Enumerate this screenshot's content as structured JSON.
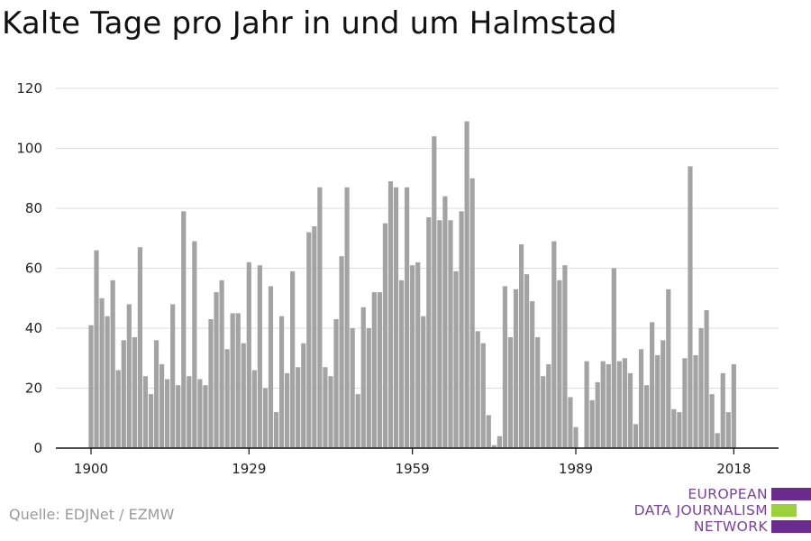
{
  "title": "Kalte Tage pro Jahr in und um Halmstad",
  "source": "Quelle: EDJNet / EZMW",
  "logo": {
    "lines": [
      "EUROPEAN",
      "DATA JOURNALISM",
      "NETWORK"
    ],
    "text_color": "#7b3fa0",
    "bar_colors": [
      "#6a2a8e",
      "#9bd13a",
      "#6a2a8e"
    ]
  },
  "colors": {
    "bar": "#a3a3a3",
    "grid": "#dddddd",
    "axis": "#111111",
    "text": "#222222"
  },
  "chart_data": {
    "type": "bar",
    "title": "Kalte Tage pro Jahr in und um Halmstad",
    "xlabel": "",
    "ylabel": "",
    "ylim": [
      0,
      120
    ],
    "yticks": [
      0,
      20,
      40,
      60,
      80,
      100,
      120
    ],
    "xticks": [
      1900,
      1929,
      1959,
      1989,
      2018
    ],
    "grid": true,
    "x": [
      1900,
      1901,
      1902,
      1903,
      1904,
      1905,
      1906,
      1907,
      1908,
      1909,
      1910,
      1911,
      1912,
      1913,
      1914,
      1915,
      1916,
      1917,
      1918,
      1919,
      1920,
      1921,
      1922,
      1923,
      1924,
      1925,
      1926,
      1927,
      1928,
      1929,
      1930,
      1931,
      1932,
      1933,
      1934,
      1935,
      1936,
      1937,
      1938,
      1939,
      1940,
      1941,
      1942,
      1943,
      1944,
      1945,
      1946,
      1947,
      1948,
      1949,
      1950,
      1951,
      1952,
      1953,
      1954,
      1955,
      1956,
      1957,
      1958,
      1959,
      1960,
      1961,
      1962,
      1963,
      1964,
      1965,
      1966,
      1967,
      1968,
      1969,
      1970,
      1971,
      1972,
      1973,
      1974,
      1975,
      1976,
      1977,
      1978,
      1979,
      1980,
      1981,
      1982,
      1983,
      1984,
      1985,
      1986,
      1987,
      1988,
      1989,
      1990,
      1991,
      1992,
      1993,
      1994,
      1995,
      1996,
      1997,
      1998,
      1999,
      2000,
      2001,
      2002,
      2003,
      2004,
      2005,
      2006,
      2007,
      2008,
      2009,
      2010,
      2011,
      2012,
      2013,
      2014,
      2015,
      2016,
      2017,
      2018
    ],
    "values": [
      41,
      66,
      50,
      44,
      56,
      26,
      36,
      48,
      37,
      67,
      24,
      18,
      36,
      28,
      23,
      48,
      21,
      79,
      24,
      69,
      23,
      21,
      43,
      52,
      56,
      33,
      45,
      45,
      35,
      62,
      26,
      61,
      20,
      54,
      12,
      44,
      25,
      59,
      27,
      35,
      72,
      74,
      87,
      27,
      24,
      43,
      64,
      87,
      40,
      18,
      47,
      40,
      52,
      52,
      75,
      89,
      87,
      56,
      87,
      61,
      62,
      44,
      77,
      104,
      76,
      84,
      76,
      59,
      79,
      109,
      90,
      39,
      35,
      11,
      1,
      4,
      54,
      37,
      53,
      68,
      58,
      49,
      37,
      24,
      28,
      69,
      56,
      61,
      17,
      7,
      0,
      29,
      16,
      22,
      29,
      28,
      60,
      29,
      30,
      25,
      8,
      33,
      21,
      42,
      31,
      36,
      53,
      13,
      12,
      30,
      94,
      31,
      40,
      46,
      18,
      5,
      25,
      12,
      28
    ]
  }
}
